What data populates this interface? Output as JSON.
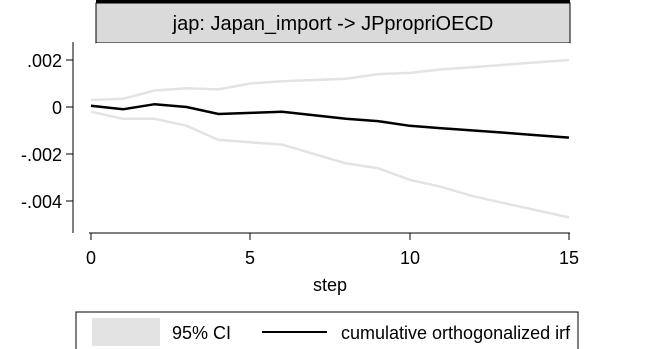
{
  "chart_data": {
    "type": "line",
    "panel_title": "jap: Japan_import -> JPpropriOECD",
    "xlabel": "step",
    "ylabel": "",
    "xlim": [
      0,
      15
    ],
    "ylim": [
      -0.005,
      0.0025
    ],
    "x_ticks": [
      0,
      5,
      10,
      15
    ],
    "x_tick_labels": [
      "0",
      "5",
      "10",
      "15"
    ],
    "y_ticks": [
      0.002,
      0,
      -0.002,
      -0.004
    ],
    "y_tick_labels": [
      ".002",
      "0",
      "-.002",
      "-.004"
    ],
    "grid": false,
    "legend_position": "bottom",
    "x": [
      0,
      1,
      2,
      3,
      4,
      5,
      6,
      7,
      8,
      9,
      10,
      11,
      12,
      13,
      14,
      15
    ],
    "series": [
      {
        "name": "cumulative orthogonalized irf",
        "values": [
          5e-05,
          -0.0001,
          0.00012,
          0.0,
          -0.0003,
          -0.00025,
          -0.0002,
          -0.00035,
          -0.0005,
          -0.0006,
          -0.0008,
          -0.0009,
          -0.001,
          -0.0011,
          -0.0012,
          -0.0013
        ]
      }
    ],
    "ci": {
      "name": "95% CI",
      "upper": [
        0.0003,
        0.00035,
        0.0007,
        0.0008,
        0.00075,
        0.001,
        0.0011,
        0.00115,
        0.0012,
        0.0014,
        0.00145,
        0.0016,
        0.0017,
        0.0018,
        0.0019,
        0.002
      ],
      "lower": [
        -0.0002,
        -0.0005,
        -0.0005,
        -0.0008,
        -0.0014,
        -0.0015,
        -0.0016,
        -0.002,
        -0.0024,
        -0.0026,
        -0.0031,
        -0.0034,
        -0.0038,
        -0.0041,
        -0.0044,
        -0.0047
      ]
    },
    "colors": {
      "irf_line": "#000000",
      "ci_line": "#e3e3e3",
      "ci_swatch": "#e3e3e3",
      "panel_header_bg": "#dadada",
      "axis": "#000000"
    }
  }
}
